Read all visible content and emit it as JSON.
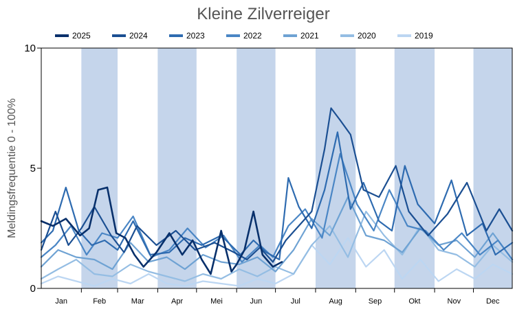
{
  "chart_data": {
    "type": "line",
    "title": "Kleine Zilverreiger",
    "ylabel": "Meldingsfrequentie 0 - 100%",
    "xlabel": "",
    "ylim": [
      0,
      10
    ],
    "yticks": [
      "0",
      "5",
      "10"
    ],
    "months": [
      "Jan",
      "Feb",
      "Mar",
      "Apr",
      "Mei",
      "Jun",
      "Jul",
      "Aug",
      "Sep",
      "Okt",
      "Nov",
      "Dec"
    ],
    "shaded_months": [
      "Feb",
      "Apr",
      "Jun",
      "Aug",
      "Okt",
      "Dec"
    ],
    "shade_color": "#c5d5eb",
    "legend_position": "top",
    "series": [
      {
        "name": "2025",
        "color": "#08306b",
        "x": [
          1,
          10,
          20,
          31,
          38,
          45,
          52,
          59,
          66,
          73,
          80,
          90,
          100,
          110,
          118,
          125,
          132,
          140,
          148,
          152,
          158,
          165,
          172,
          180,
          187
        ],
        "values": [
          2.8,
          2.6,
          2.9,
          2.2,
          2.5,
          4.1,
          4.2,
          2.3,
          2.1,
          1.4,
          0.9,
          1.5,
          2.3,
          1.4,
          2.0,
          1.2,
          0.6,
          2.4,
          0.7,
          1.0,
          1.6,
          3.2,
          1.4,
          0.9,
          1.1
        ]
      },
      {
        "name": "2024",
        "color": "#1b4f92",
        "x": [
          1,
          12,
          22,
          32,
          42,
          55,
          65,
          75,
          90,
          105,
          120,
          135,
          150,
          160,
          170,
          180,
          190,
          200,
          210,
          220,
          225,
          232,
          240,
          250,
          262,
          275,
          285,
          300,
          315,
          330,
          345,
          355,
          365
        ],
        "values": [
          1.6,
          3.2,
          1.8,
          2.5,
          3.4,
          2.2,
          1.5,
          2.6,
          1.8,
          2.4,
          1.6,
          1.9,
          1.5,
          1.2,
          1.7,
          1.1,
          2.0,
          2.6,
          3.2,
          5.8,
          7.5,
          7.0,
          6.4,
          4.1,
          3.8,
          5.1,
          3.2,
          2.2,
          3.1,
          4.4,
          2.4,
          3.3,
          2.4
        ]
      },
      {
        "name": "2023",
        "color": "#2e6bb0",
        "x": [
          1,
          10,
          20,
          30,
          40,
          50,
          60,
          72,
          85,
          100,
          112,
          125,
          140,
          155,
          165,
          175,
          185,
          192,
          200,
          210,
          220,
          230,
          240,
          250,
          262,
          272,
          282,
          292,
          305,
          318,
          330,
          342,
          352,
          365
        ],
        "values": [
          1.9,
          2.4,
          4.2,
          2.4,
          1.8,
          2.0,
          1.6,
          2.8,
          1.4,
          1.5,
          2.1,
          1.8,
          2.2,
          1.4,
          2.0,
          1.5,
          1.2,
          4.6,
          3.4,
          2.5,
          4.1,
          6.5,
          3.3,
          4.4,
          2.8,
          2.4,
          5.1,
          3.5,
          2.7,
          4.5,
          2.2,
          2.7,
          1.4,
          1.9
        ]
      },
      {
        "name": "2022",
        "color": "#4a86c5",
        "x": [
          1,
          12,
          24,
          36,
          48,
          60,
          72,
          86,
          100,
          114,
          128,
          142,
          156,
          170,
          180,
          192,
          205,
          218,
          232,
          245,
          258,
          270,
          284,
          298,
          312,
          326,
          340,
          354,
          365
        ],
        "values": [
          1.3,
          1.8,
          2.6,
          1.4,
          2.3,
          2.1,
          3.0,
          1.3,
          1.6,
          2.5,
          1.7,
          2.2,
          1.1,
          1.8,
          1.3,
          2.6,
          3.3,
          2.1,
          5.6,
          3.5,
          2.4,
          4.1,
          2.6,
          2.4,
          1.6,
          2.3,
          1.4,
          2.0,
          1.2
        ]
      },
      {
        "name": "2021",
        "color": "#6ea2d3",
        "x": [
          1,
          14,
          28,
          42,
          56,
          70,
          84,
          98,
          112,
          126,
          140,
          154,
          168,
          182,
          196,
          210,
          224,
          238,
          252,
          266,
          280,
          294,
          308,
          322,
          336,
          350,
          365
        ],
        "values": [
          0.9,
          1.6,
          1.3,
          1.2,
          0.8,
          1.9,
          1.1,
          1.3,
          0.8,
          1.4,
          1.1,
          1.0,
          1.3,
          0.7,
          1.6,
          2.9,
          2.2,
          3.8,
          2.2,
          2.0,
          1.5,
          2.5,
          1.8,
          2.0,
          1.3,
          2.3,
          1.2
        ]
      },
      {
        "name": "2020",
        "color": "#94bde3",
        "x": [
          1,
          14,
          28,
          42,
          56,
          70,
          84,
          98,
          112,
          126,
          140,
          154,
          168,
          182,
          196,
          210,
          224,
          238,
          252,
          266,
          280,
          294,
          308,
          322,
          336,
          350,
          365
        ],
        "values": [
          0.4,
          0.8,
          1.2,
          0.6,
          0.5,
          1.0,
          0.7,
          0.5,
          0.3,
          0.6,
          0.4,
          0.8,
          0.5,
          0.9,
          0.6,
          1.8,
          2.6,
          1.3,
          3.2,
          2.2,
          1.4,
          2.6,
          1.6,
          1.4,
          0.9,
          1.8,
          1.1
        ]
      },
      {
        "name": "2019",
        "color": "#bcd6f2",
        "x": [
          1,
          14,
          28,
          42,
          56,
          70,
          84,
          98,
          112,
          126,
          140,
          154,
          168,
          182,
          196,
          210,
          224,
          238,
          252,
          266,
          280,
          294,
          308,
          322,
          336,
          350,
          365
        ],
        "values": [
          0.2,
          0.5,
          0.3,
          0.1,
          0.4,
          0.2,
          0.6,
          0.2,
          0.1,
          0.3,
          0.2,
          0.1,
          0.4,
          0.2,
          0.6,
          1.8,
          1.0,
          2.1,
          0.9,
          1.6,
          0.4,
          1.2,
          0.3,
          0.8,
          0.4,
          1.0,
          0.6
        ]
      }
    ]
  }
}
